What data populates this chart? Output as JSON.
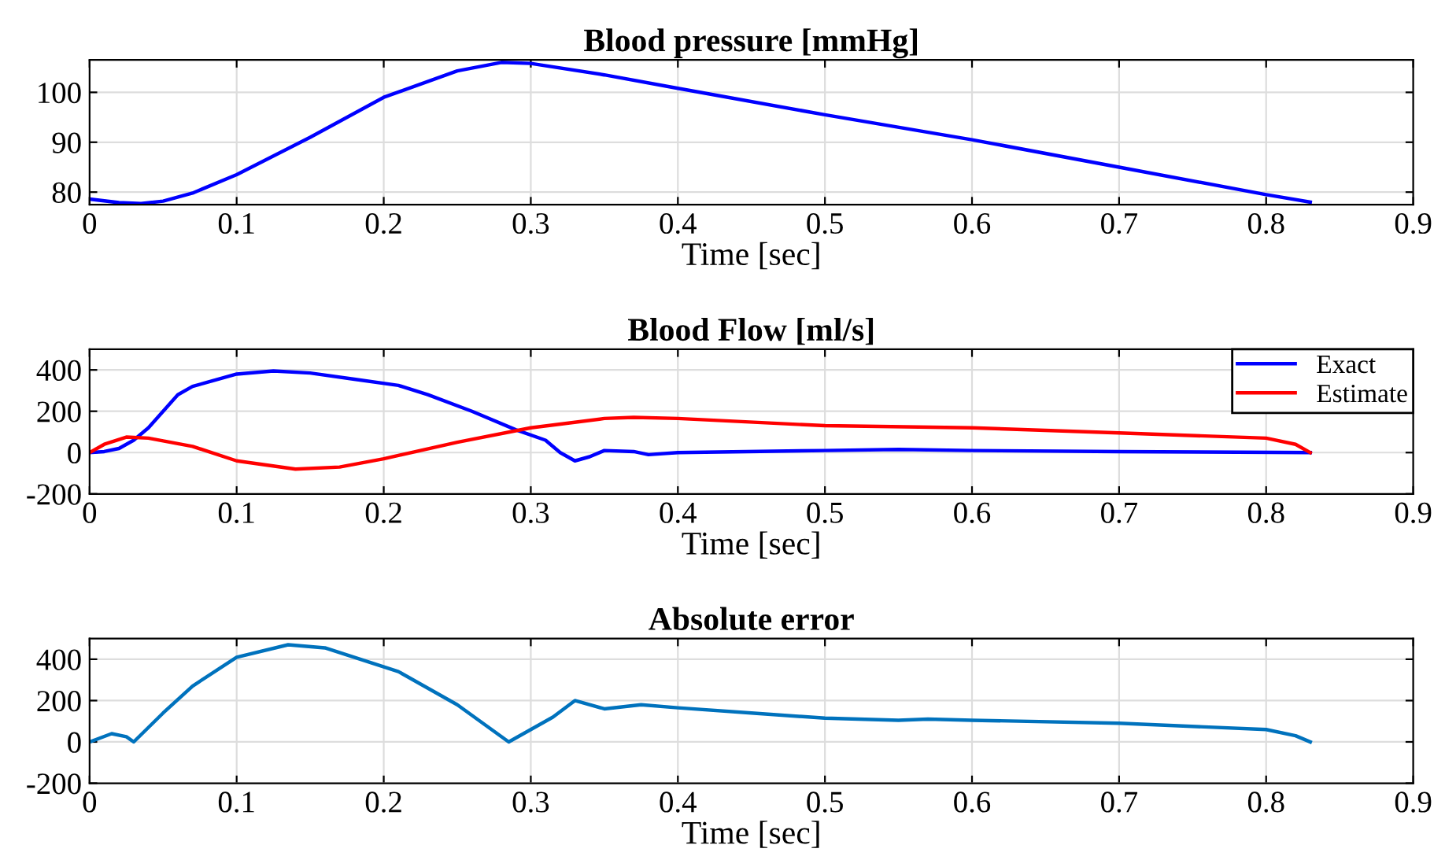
{
  "chart_data": [
    {
      "type": "line",
      "title": "Blood pressure [mmHg]",
      "xlabel": "Time [sec]",
      "xlim": [
        0,
        0.9
      ],
      "xticks": [
        0,
        0.1,
        0.2,
        0.3,
        0.4,
        0.5,
        0.6,
        0.7,
        0.8,
        0.9
      ],
      "ylim": [
        77.5,
        106.5
      ],
      "yticks": [
        80,
        90,
        100
      ],
      "grid": true,
      "legend": false,
      "series": [
        {
          "color": "#0000ff",
          "x": [
            0,
            0.02,
            0.035,
            0.05,
            0.07,
            0.1,
            0.15,
            0.2,
            0.25,
            0.28,
            0.3,
            0.35,
            0.4,
            0.5,
            0.6,
            0.7,
            0.8,
            0.83
          ],
          "values": [
            78.6,
            77.9,
            77.7,
            78.2,
            79.8,
            83.5,
            91,
            99,
            104.3,
            106,
            105.8,
            103.5,
            100.8,
            95.5,
            90.5,
            85,
            79.5,
            78
          ]
        }
      ]
    },
    {
      "type": "line",
      "title": "Blood Flow [ml/s]",
      "xlabel": "Time [sec]",
      "xlim": [
        0,
        0.9
      ],
      "xticks": [
        0,
        0.1,
        0.2,
        0.3,
        0.4,
        0.5,
        0.6,
        0.7,
        0.8,
        0.9
      ],
      "ylim": [
        -200,
        500
      ],
      "yticks": [
        -200,
        0,
        200,
        400
      ],
      "grid": true,
      "legend": "top right",
      "series": [
        {
          "name": "Exact",
          "color": "#0000ff",
          "x": [
            0,
            0.01,
            0.02,
            0.03,
            0.04,
            0.05,
            0.06,
            0.07,
            0.08,
            0.1,
            0.125,
            0.15,
            0.18,
            0.21,
            0.23,
            0.26,
            0.29,
            0.31,
            0.32,
            0.33,
            0.34,
            0.35,
            0.37,
            0.38,
            0.4,
            0.5,
            0.55,
            0.6,
            0.7,
            0.83
          ],
          "values": [
            0,
            5,
            20,
            60,
            120,
            200,
            280,
            320,
            340,
            380,
            395,
            385,
            355,
            325,
            280,
            200,
            110,
            60,
            0,
            -40,
            -20,
            10,
            5,
            -10,
            0,
            10,
            15,
            10,
            5,
            0
          ]
        },
        {
          "name": "Estimate",
          "color": "#ff0000",
          "x": [
            0,
            0.01,
            0.025,
            0.04,
            0.07,
            0.1,
            0.14,
            0.17,
            0.2,
            0.25,
            0.3,
            0.35,
            0.37,
            0.4,
            0.5,
            0.6,
            0.7,
            0.8,
            0.82,
            0.83
          ],
          "values": [
            0,
            40,
            75,
            70,
            30,
            -40,
            -80,
            -70,
            -30,
            50,
            120,
            165,
            170,
            165,
            130,
            120,
            95,
            70,
            40,
            0
          ]
        }
      ]
    },
    {
      "type": "line",
      "title": "Absolute error",
      "xlabel": "Time [sec]",
      "xlim": [
        0,
        0.9
      ],
      "xticks": [
        0,
        0.1,
        0.2,
        0.3,
        0.4,
        0.5,
        0.6,
        0.7,
        0.8,
        0.9
      ],
      "ylim": [
        -200,
        500
      ],
      "yticks": [
        -200,
        0,
        200,
        400
      ],
      "grid": true,
      "legend": false,
      "series": [
        {
          "color": "#0072bd",
          "x": [
            0,
            0.015,
            0.025,
            0.03,
            0.05,
            0.07,
            0.1,
            0.135,
            0.16,
            0.21,
            0.25,
            0.285,
            0.3,
            0.315,
            0.33,
            0.35,
            0.375,
            0.4,
            0.45,
            0.5,
            0.55,
            0.57,
            0.6,
            0.7,
            0.8,
            0.82,
            0.83
          ],
          "values": [
            0,
            40,
            25,
            0,
            140,
            270,
            410,
            470,
            455,
            340,
            180,
            0,
            60,
            120,
            200,
            160,
            180,
            165,
            140,
            115,
            105,
            110,
            105,
            90,
            60,
            30,
            0
          ]
        }
      ]
    }
  ]
}
